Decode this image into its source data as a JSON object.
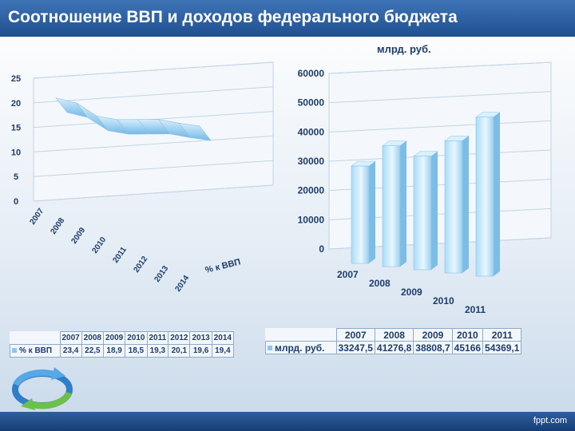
{
  "slide": {
    "title": "Соотношение ВВП и доходов федерального бюджета",
    "footer": "fppt.com"
  },
  "chart_data": [
    {
      "type": "area",
      "title": "",
      "categories": [
        "2007",
        "2008",
        "2009",
        "2010",
        "2011",
        "2012",
        "2013",
        "2014"
      ],
      "series": [
        {
          "name": "% к ВВП",
          "values": [
            23.4,
            22.5,
            18.9,
            18.5,
            19.3,
            20.1,
            19.6,
            19.4
          ]
        }
      ],
      "y_ticks": [
        "0",
        "5",
        "10",
        "15",
        "20",
        "25"
      ],
      "ylim": [
        0,
        25
      ],
      "depth_axis_label": "% к ВВП",
      "table": {
        "header": [
          "2007",
          "2008",
          "2009",
          "2010",
          "2011",
          "2012",
          "2013",
          "2014"
        ],
        "row_label": "% к ВВП",
        "row": [
          "23,4",
          "22,5",
          "18,9",
          "18,5",
          "19,3",
          "20,1",
          "19,6",
          "19,4"
        ]
      },
      "colors": {
        "fill": "#8cc8ee"
      }
    },
    {
      "type": "bar",
      "title": "млрд. руб.",
      "categories": [
        "2007",
        "2008",
        "2009",
        "2010",
        "2011"
      ],
      "series": [
        {
          "name": "млрд. руб.",
          "values": [
            33247.5,
            41276.8,
            38808.7,
            45166,
            54369.1
          ]
        }
      ],
      "y_ticks": [
        "0",
        "10000",
        "20000",
        "30000",
        "40000",
        "50000",
        "60000"
      ],
      "ylim": [
        0,
        60000
      ],
      "table": {
        "header": [
          "2007",
          "2008",
          "2009",
          "2010",
          "2011"
        ],
        "row_label": "млрд. руб.",
        "row": [
          "33247,5",
          "41276,8",
          "38808,7",
          "45166",
          "54369,1"
        ]
      },
      "colors": {
        "bar": "#9fd5f5"
      }
    }
  ]
}
